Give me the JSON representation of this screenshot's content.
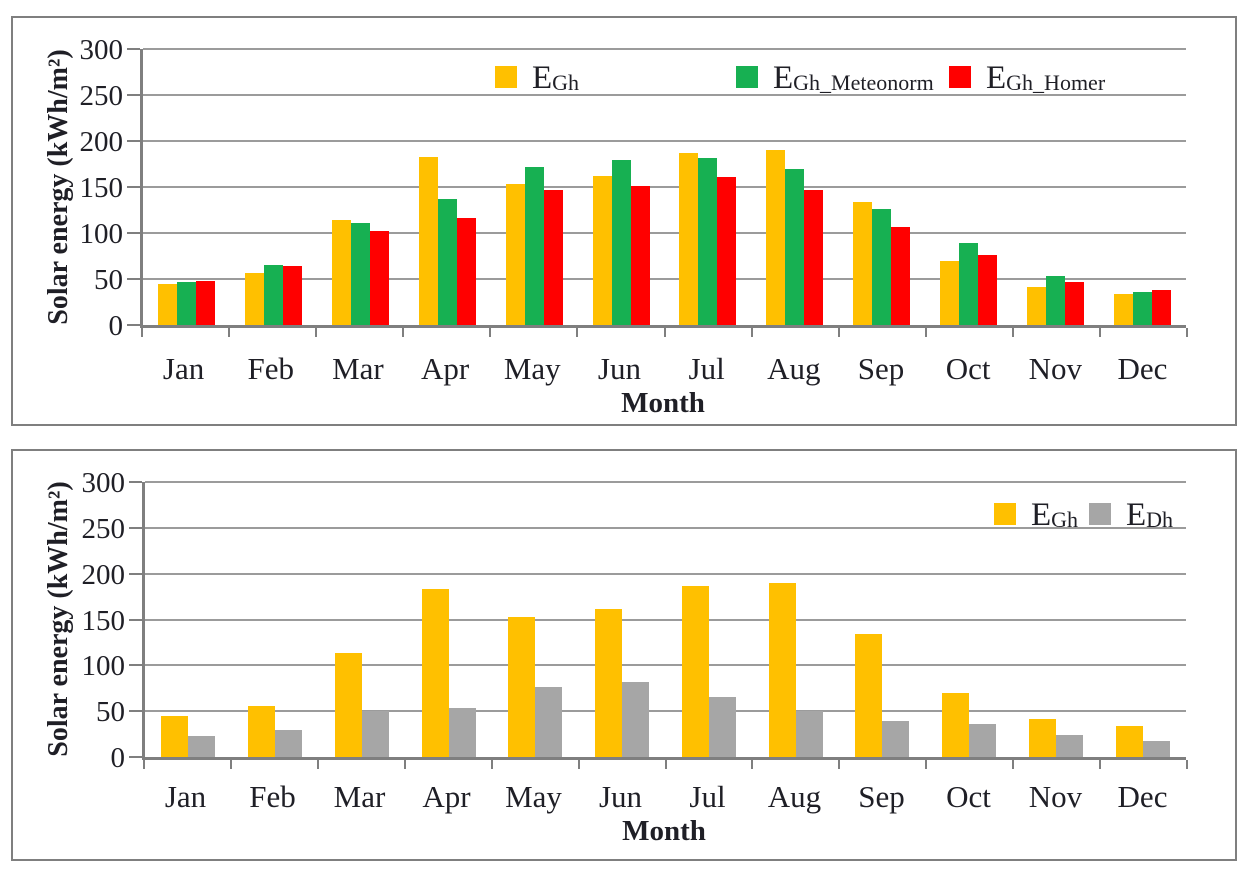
{
  "page": {
    "background": "#FFFFFF"
  },
  "colors": {
    "panel_border": "#7F7F7F",
    "axis": "#7F7F7F",
    "gridline": "#9B9B9B",
    "text": "#1F1F26",
    "series_gold": "#FFC000",
    "series_green": "#17B052",
    "series_red": "#FF0000",
    "series_gray": "#A6A6A6"
  },
  "chart_data": [
    {
      "type": "bar",
      "title": "",
      "xlabel": "Month",
      "ylabel": "Solar energy (kWh/m²)",
      "ylim": [
        0,
        300
      ],
      "yticks": [
        0,
        50,
        100,
        150,
        200,
        250,
        300
      ],
      "grid": "horizontal",
      "legend_position": "top-center-inside",
      "categories": [
        "Jan",
        "Feb",
        "Mar",
        "Apr",
        "May",
        "Jun",
        "Jul",
        "Aug",
        "Sep",
        "Oct",
        "Nov",
        "Dec"
      ],
      "series": [
        {
          "name": "E_Gh",
          "legend": {
            "main": "E",
            "sub": "Gh"
          },
          "color": "#FFC000",
          "values": [
            45,
            56,
            114,
            183,
            153,
            162,
            187,
            190,
            134,
            70,
            41,
            34
          ]
        },
        {
          "name": "E_Gh_Meteonorm",
          "legend": {
            "main": "E",
            "sub": "Gh_Meteonorm"
          },
          "color": "#17B052",
          "values": [
            47,
            65,
            111,
            137,
            172,
            179,
            181,
            170,
            126,
            89,
            53,
            36
          ]
        },
        {
          "name": "E_Gh_Homer",
          "legend": {
            "main": "E",
            "sub": "Gh_Homer"
          },
          "color": "#FF0000",
          "values": [
            48,
            64,
            102,
            116,
            147,
            151,
            161,
            147,
            106,
            76,
            47,
            38
          ]
        }
      ]
    },
    {
      "type": "bar",
      "title": "",
      "xlabel": "Month",
      "ylabel": "Solar energy (kWh/m²)",
      "ylim": [
        0,
        300
      ],
      "yticks": [
        0,
        50,
        100,
        150,
        200,
        250,
        300
      ],
      "grid": "horizontal",
      "legend_position": "top-right-inside",
      "categories": [
        "Jan",
        "Feb",
        "Mar",
        "Apr",
        "May",
        "Jun",
        "Jul",
        "Aug",
        "Sep",
        "Oct",
        "Nov",
        "Dec"
      ],
      "series": [
        {
          "name": "E_Gh",
          "legend": {
            "main": "E",
            "sub": "Gh"
          },
          "color": "#FFC000",
          "values": [
            45,
            56,
            114,
            183,
            153,
            162,
            187,
            190,
            134,
            70,
            41,
            34
          ]
        },
        {
          "name": "E_Dh",
          "legend": {
            "main": "E",
            "sub": "Dh"
          },
          "color": "#A6A6A6",
          "values": [
            23,
            29,
            50,
            53,
            76,
            82,
            66,
            50,
            39,
            36,
            24,
            17
          ]
        }
      ]
    }
  ]
}
